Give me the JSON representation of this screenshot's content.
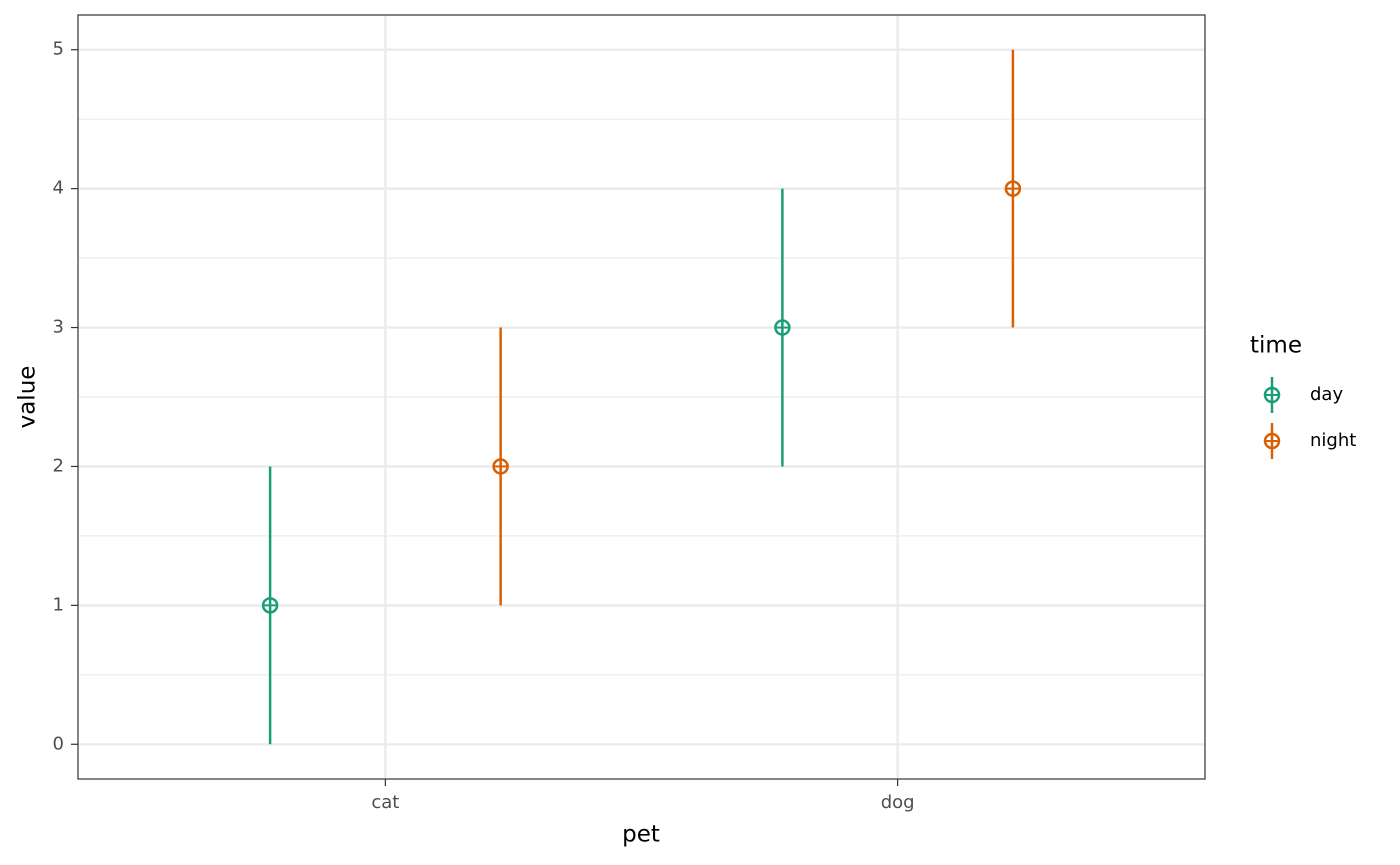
{
  "chart_data": {
    "type": "pointrange",
    "x_label": "pet",
    "y_label": "value",
    "categories": [
      "cat",
      "dog"
    ],
    "legend_title": "time",
    "legend_position": "right",
    "series": [
      {
        "name": "day",
        "color": "#1b9e77",
        "values": [
          1,
          3
        ],
        "errors": [
          1,
          1
        ]
      },
      {
        "name": "night",
        "color": "#d95f02",
        "values": [
          2,
          4
        ],
        "errors": [
          1,
          1
        ]
      }
    ],
    "ylim": [
      -0.25,
      5.25
    ],
    "yticks": [
      0,
      1,
      2,
      3,
      4,
      5
    ],
    "grid": true
  }
}
